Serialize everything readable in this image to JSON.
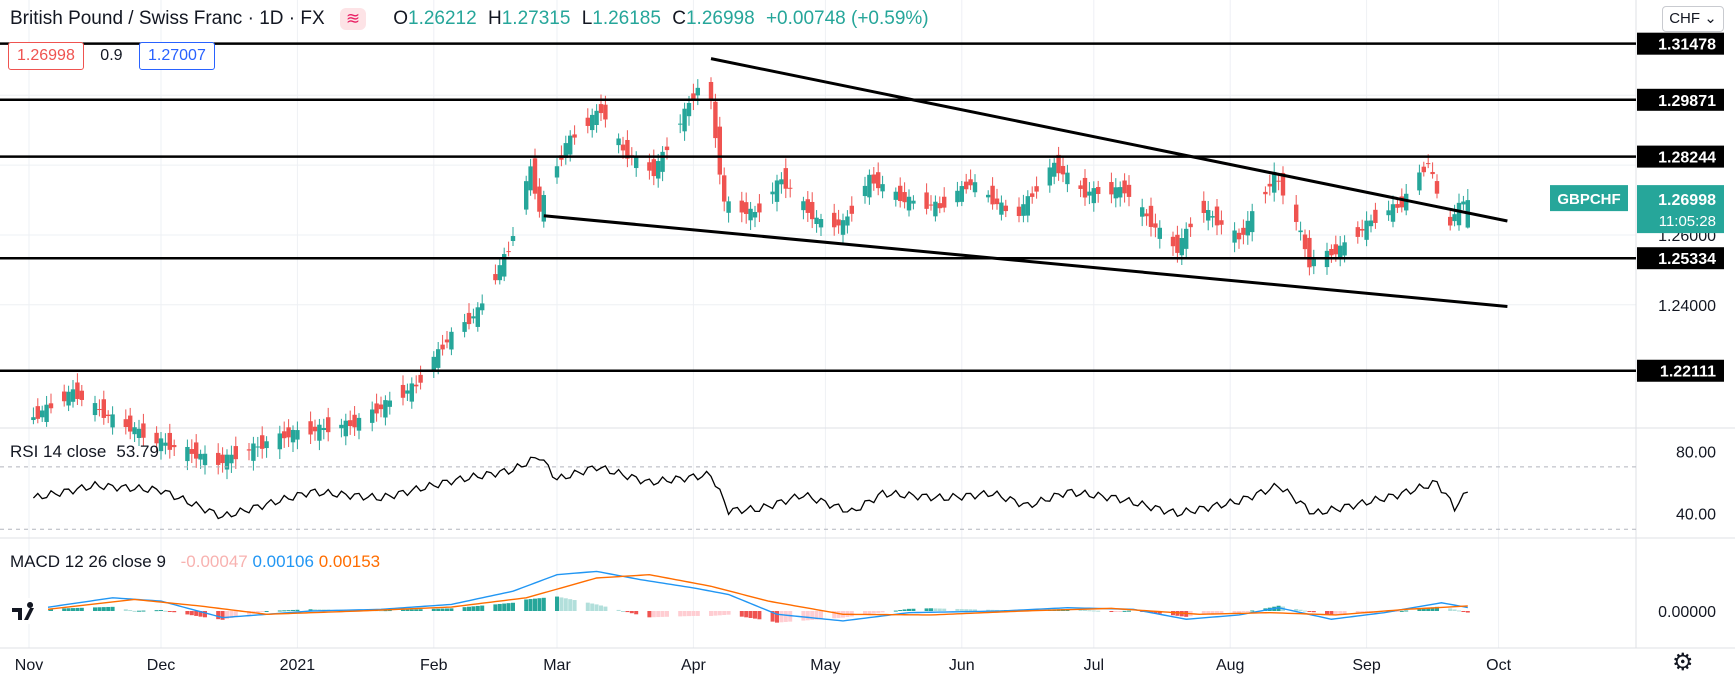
{
  "header": {
    "symbol_name": "British Pound / Swiss Franc",
    "interval": "1D",
    "exchange": "FX",
    "open_label": "O",
    "open": "1.26212",
    "high_label": "H",
    "high": "1.27315",
    "low_label": "L",
    "low": "1.26185",
    "close_label": "C",
    "close": "1.26998",
    "change": "+0.00748 (+0.59%)"
  },
  "trade": {
    "sell": "1.26998",
    "spread": "0.9",
    "buy": "1.27007"
  },
  "currency_selector": "CHF",
  "price_tag": {
    "symbol": "GBPCHF",
    "price": "1.26998",
    "countdown": "11:05:28"
  },
  "rsi": {
    "label": "RSI 14 close",
    "value": "53.79"
  },
  "macd": {
    "label": "MACD 12 26 close 9",
    "hist": "-0.00047",
    "macd": "0.00106",
    "signal": "0.00153"
  },
  "colors": {
    "up": "#26a69a",
    "down": "#ef5350",
    "macd": "#2196f3",
    "signal": "#ff6d00",
    "line": "#000000"
  },
  "chart_data": {
    "type": "candlestick",
    "title": "British Pound / Swiss Franc, 1D, FX",
    "x_tick_labels": [
      "Nov",
      "Dec",
      "2021",
      "Feb",
      "Mar",
      "Apr",
      "May",
      "Jun",
      "Jul",
      "Aug",
      "Sep",
      "Oct"
    ],
    "y_tick_labels": [
      "1.26000",
      "1.24000"
    ],
    "y_range": [
      1.205,
      1.325
    ],
    "horizontal_levels": [
      "1.31478",
      "1.29871",
      "1.28244",
      "1.25334",
      "1.22111"
    ],
    "trendlines": [
      {
        "name": "upper",
        "from": [
          "2021-04-05",
          1.3105
        ],
        "to": [
          "2021-10-03",
          1.264
        ]
      },
      {
        "name": "lower",
        "from": [
          "2021-02-26",
          1.2655
        ],
        "to": [
          "2021-10-03",
          1.2395
        ]
      }
    ],
    "price_path": [
      [
        "2020-11-02",
        1.207
      ],
      [
        "2020-11-12",
        1.215
      ],
      [
        "2020-11-20",
        1.208
      ],
      [
        "2020-12-01",
        1.201
      ],
      [
        "2020-12-15",
        1.195
      ],
      [
        "2020-12-31",
        1.203
      ],
      [
        "2021-01-15",
        1.206
      ],
      [
        "2021-01-29",
        1.217
      ],
      [
        "2021-02-05",
        1.23
      ],
      [
        "2021-02-12",
        1.238
      ],
      [
        "2021-02-19",
        1.256
      ],
      [
        "2021-02-24",
        1.279
      ],
      [
        "2021-02-26",
        1.267
      ],
      [
        "2021-03-04",
        1.286
      ],
      [
        "2021-03-12",
        1.296
      ],
      [
        "2021-03-17",
        1.284
      ],
      [
        "2021-03-24",
        1.278
      ],
      [
        "2021-03-31",
        1.295
      ],
      [
        "2021-04-05",
        1.307
      ],
      [
        "2021-04-09",
        1.269
      ],
      [
        "2021-04-16",
        1.266
      ],
      [
        "2021-04-22",
        1.276
      ],
      [
        "2021-04-30",
        1.264
      ],
      [
        "2021-05-06",
        1.263
      ],
      [
        "2021-05-12",
        1.276
      ],
      [
        "2021-05-20",
        1.27
      ],
      [
        "2021-05-28",
        1.268
      ],
      [
        "2021-06-04",
        1.275
      ],
      [
        "2021-06-14",
        1.265
      ],
      [
        "2021-06-23",
        1.28
      ],
      [
        "2021-06-30",
        1.272
      ],
      [
        "2021-07-09",
        1.273
      ],
      [
        "2021-07-16",
        1.262
      ],
      [
        "2021-07-21",
        1.256
      ],
      [
        "2021-07-26",
        1.268
      ],
      [
        "2021-08-04",
        1.259
      ],
      [
        "2021-08-12",
        1.277
      ],
      [
        "2021-08-16",
        1.268
      ],
      [
        "2021-08-20",
        1.252
      ],
      [
        "2021-08-27",
        1.256
      ],
      [
        "2021-09-03",
        1.264
      ],
      [
        "2021-09-10",
        1.269
      ],
      [
        "2021-09-16",
        1.281
      ],
      [
        "2021-09-20",
        1.262
      ],
      [
        "2021-09-24",
        1.2699
      ]
    ],
    "rsi": {
      "ylim": [
        25,
        95
      ],
      "y_tick_labels": [
        "80.00",
        "40.00"
      ],
      "bands": [
        70,
        30
      ],
      "path": [
        [
          "2020-11-02",
          50
        ],
        [
          "2020-11-16",
          58
        ],
        [
          "2020-12-01",
          55
        ],
        [
          "2020-12-15",
          38
        ],
        [
          "2021-01-04",
          54
        ],
        [
          "2021-01-20",
          50
        ],
        [
          "2021-02-05",
          61
        ],
        [
          "2021-02-19",
          68
        ],
        [
          "2021-02-25",
          77
        ],
        [
          "2021-03-01",
          62
        ],
        [
          "2021-03-10",
          70
        ],
        [
          "2021-03-22",
          60
        ],
        [
          "2021-04-05",
          65
        ],
        [
          "2021-04-09",
          42
        ],
        [
          "2021-04-16",
          43
        ],
        [
          "2021-04-26",
          52
        ],
        [
          "2021-05-07",
          41
        ],
        [
          "2021-05-14",
          53
        ],
        [
          "2021-05-28",
          50
        ],
        [
          "2021-06-08",
          53
        ],
        [
          "2021-06-16",
          45
        ],
        [
          "2021-06-25",
          54
        ],
        [
          "2021-07-06",
          50
        ],
        [
          "2021-07-20",
          40
        ],
        [
          "2021-08-03",
          48
        ],
        [
          "2021-08-12",
          58
        ],
        [
          "2021-08-20",
          40
        ],
        [
          "2021-08-30",
          46
        ],
        [
          "2021-09-08",
          52
        ],
        [
          "2021-09-17",
          60
        ],
        [
          "2021-09-21",
          44
        ],
        [
          "2021-09-24",
          53.79
        ]
      ]
    },
    "macd": {
      "y_tick_labels": [
        "0.00000"
      ],
      "macd_path": [
        [
          "2020-11-02",
          0.0005
        ],
        [
          "2020-11-20",
          0.004
        ],
        [
          "2020-12-01",
          0.003
        ],
        [
          "2020-12-15",
          -0.002
        ],
        [
          "2021-01-04",
          0.0
        ],
        [
          "2021-01-20",
          0.0005
        ],
        [
          "2021-02-05",
          0.002
        ],
        [
          "2021-02-19",
          0.006
        ],
        [
          "2021-03-01",
          0.011
        ],
        [
          "2021-03-10",
          0.012
        ],
        [
          "2021-03-20",
          0.0095
        ],
        [
          "2021-04-01",
          0.007
        ],
        [
          "2021-04-09",
          0.005
        ],
        [
          "2021-04-20",
          -0.001
        ],
        [
          "2021-05-05",
          -0.003
        ],
        [
          "2021-05-20",
          -0.0005
        ],
        [
          "2021-06-10",
          0.0
        ],
        [
          "2021-06-25",
          0.001
        ],
        [
          "2021-07-10",
          0.0005
        ],
        [
          "2021-07-22",
          -0.0025
        ],
        [
          "2021-08-03",
          -0.0012
        ],
        [
          "2021-08-12",
          0.001
        ],
        [
          "2021-08-24",
          -0.0025
        ],
        [
          "2021-09-05",
          -0.0005
        ],
        [
          "2021-09-18",
          0.0025
        ],
        [
          "2021-09-24",
          0.00106
        ]
      ],
      "signal_path": [
        [
          "2020-11-02",
          0.0
        ],
        [
          "2020-11-25",
          0.0035
        ],
        [
          "2020-12-10",
          0.0015
        ],
        [
          "2020-12-25",
          -0.001
        ],
        [
          "2021-01-15",
          0.0
        ],
        [
          "2021-02-05",
          0.0012
        ],
        [
          "2021-02-22",
          0.004
        ],
        [
          "2021-03-10",
          0.01
        ],
        [
          "2021-03-22",
          0.011
        ],
        [
          "2021-04-05",
          0.0075
        ],
        [
          "2021-04-18",
          0.003
        ],
        [
          "2021-05-05",
          -0.001
        ],
        [
          "2021-05-25",
          -0.0012
        ],
        [
          "2021-06-15",
          0.0
        ],
        [
          "2021-07-05",
          0.0008
        ],
        [
          "2021-07-25",
          -0.001
        ],
        [
          "2021-08-10",
          -0.0005
        ],
        [
          "2021-08-25",
          -0.0012
        ],
        [
          "2021-09-10",
          0.0005
        ],
        [
          "2021-09-24",
          0.00153
        ]
      ]
    }
  }
}
